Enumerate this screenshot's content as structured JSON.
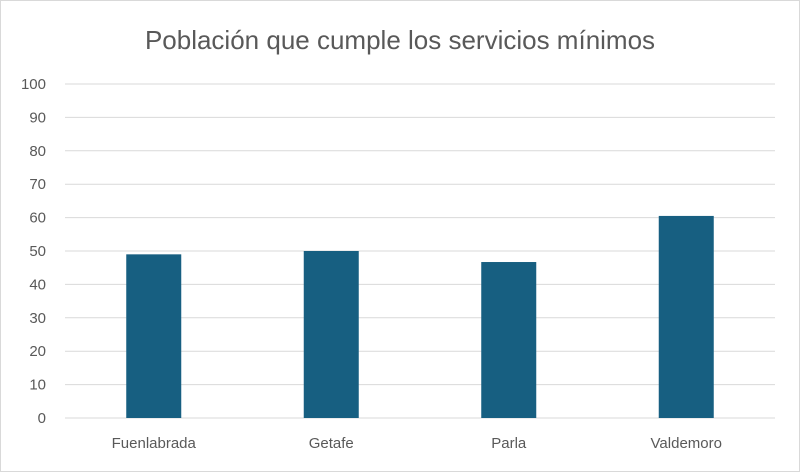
{
  "chart_data": {
    "type": "bar",
    "title": "Población que cumple los servicios mínimos",
    "categories": [
      "Fuenlabrada",
      "Getafe",
      "Parla",
      "Valdemoro"
    ],
    "values": [
      49,
      50,
      46.7,
      60.5
    ],
    "xlabel": "",
    "ylabel": "",
    "ylim": [
      0,
      100
    ],
    "yticks": [
      0,
      10,
      20,
      30,
      40,
      50,
      60,
      70,
      80,
      90,
      100
    ],
    "grid": true,
    "legend": "none",
    "bar_color": "#175F81"
  }
}
